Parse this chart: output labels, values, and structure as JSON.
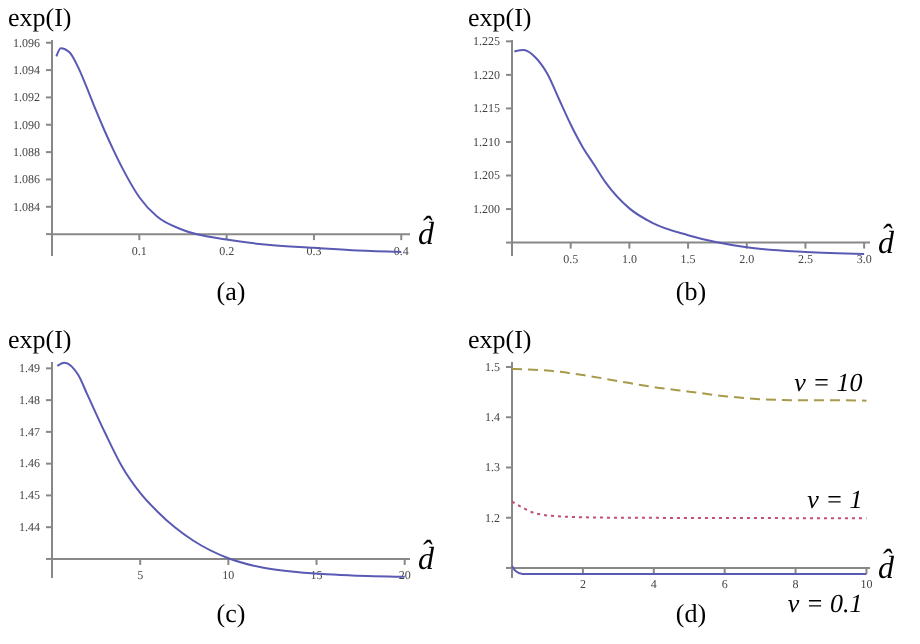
{
  "chart_data": [
    {
      "type": "line",
      "xlabel": "d̂",
      "ylabel": "exp(I)",
      "annotations": [
        "(a)"
      ],
      "xlim": [
        0,
        0.41
      ],
      "ylim": [
        1.0804,
        1.0962
      ],
      "xticks": [
        {
          "value": 0,
          "label": null
        },
        0.1,
        0.2,
        0.3,
        0.4
      ],
      "yticks": [
        {
          "value": 1.082,
          "label": null
        },
        1.084,
        1.086,
        1.088,
        {
          "value": 1.09,
          "label": "1.090"
        },
        1.092,
        1.094,
        1.096
      ],
      "series": [
        {
          "color": "#5a5ab4",
          "line_style": "solid",
          "x": [
            0.005,
            0.01,
            0.02,
            0.03,
            0.04,
            0.05,
            0.06,
            0.07,
            0.08,
            0.1,
            0.12,
            0.15,
            0.2,
            0.25,
            0.3,
            0.35,
            0.4
          ],
          "values": [
            1.095,
            1.0956,
            1.0953,
            1.0942,
            1.0927,
            1.0911,
            1.0896,
            1.0882,
            1.0869,
            1.0847,
            1.0833,
            1.0823,
            1.0816,
            1.0812,
            1.081,
            1.0808,
            1.0807
          ]
        }
      ]
    },
    {
      "type": "line",
      "xlabel": "d̂",
      "ylabel": "exp(I)",
      "annotations": [
        "(b)"
      ],
      "xlim": [
        0,
        3.05
      ],
      "ylim": [
        1.193,
        1.2252
      ],
      "xticks": [
        {
          "value": 0,
          "label": null
        },
        {
          "value": 0.5,
          "label": "0.5"
        },
        {
          "value": 1,
          "label": "1.0"
        },
        {
          "value": 1.5,
          "label": "1.5"
        },
        {
          "value": 2,
          "label": "2.0"
        },
        {
          "value": 2.5,
          "label": "2.5"
        },
        {
          "value": 3,
          "label": "3.0"
        }
      ],
      "yticks": [
        {
          "value": 1.195,
          "label": null
        },
        {
          "value": 1.2,
          "label": "1.200"
        },
        {
          "value": 1.205,
          "label": "1.205"
        },
        {
          "value": 1.21,
          "label": "1.210"
        },
        {
          "value": 1.215,
          "label": "1.215"
        },
        {
          "value": 1.22,
          "label": "1.220"
        },
        {
          "value": 1.225,
          "label": "1.225"
        }
      ],
      "series": [
        {
          "color": "#5a5ab4",
          "line_style": "solid",
          "x": [
            0.02,
            0.1,
            0.2,
            0.3,
            0.4,
            0.5,
            0.6,
            0.7,
            0.8,
            1.0,
            1.2,
            1.5,
            2.0,
            2.5,
            3.0
          ],
          "values": [
            1.2235,
            1.2237,
            1.2226,
            1.2202,
            1.2164,
            1.2126,
            1.2093,
            1.2066,
            1.2039,
            1.2001,
            1.1979,
            1.1961,
            1.1943,
            1.1936,
            1.1933
          ]
        }
      ]
    },
    {
      "type": "line",
      "xlabel": "d̂",
      "ylabel": "exp(I)",
      "annotations": [
        "(c)"
      ],
      "xlim": [
        0,
        20.3
      ],
      "ylim": [
        1.424,
        1.492
      ],
      "xticks": [
        {
          "value": 0,
          "label": null
        },
        5,
        10,
        15,
        20
      ],
      "yticks": [
        {
          "value": 1.43,
          "label": null
        },
        1.44,
        1.45,
        1.46,
        1.47,
        1.48,
        1.49
      ],
      "series": [
        {
          "color": "#5a5ab4",
          "line_style": "solid",
          "x": [
            0.3,
            0.7,
            1.5,
            2,
            3,
            4,
            5,
            6,
            7,
            8,
            10,
            12,
            14,
            17,
            20
          ],
          "values": [
            1.4908,
            1.4918,
            1.4878,
            1.4818,
            1.4698,
            1.4588,
            1.4508,
            1.4448,
            1.4398,
            1.4358,
            1.4302,
            1.4272,
            1.4258,
            1.4248,
            1.4244
          ]
        }
      ]
    },
    {
      "type": "line",
      "xlabel": "d̂",
      "ylabel": "exp(I)",
      "annotations": [
        "(d)"
      ],
      "xlim": [
        0,
        10.1
      ],
      "ylim": [
        1.08,
        1.51
      ],
      "xticks": [
        {
          "value": 0,
          "label": null
        },
        2,
        4,
        6,
        8,
        10
      ],
      "yticks": [
        {
          "value": 1.1,
          "label": null
        },
        1.2,
        1.3,
        1.4,
        1.5
      ],
      "series": [
        {
          "name": "ν = 10",
          "color": "#a89a4a",
          "line_style": "dashed",
          "x": [
            0,
            1,
            2,
            3,
            4,
            5,
            6,
            7,
            8,
            9,
            10
          ],
          "values": [
            1.496,
            1.493,
            1.484,
            1.472,
            1.46,
            1.451,
            1.442,
            1.436,
            1.434,
            1.434,
            1.433
          ]
        },
        {
          "name": "ν = 1",
          "color": "#c05070",
          "line_style": "dotted",
          "x": [
            0,
            0.3,
            0.7,
            1.5,
            3,
            10
          ],
          "values": [
            1.232,
            1.22,
            1.208,
            1.202,
            1.2,
            1.199
          ]
        },
        {
          "name": "ν = 0.1",
          "color": "#5a5ab4",
          "line_style": "solid",
          "x": [
            0,
            0.1,
            0.3,
            10
          ],
          "values": [
            1.104,
            1.094,
            1.088,
            1.088
          ]
        }
      ]
    }
  ]
}
